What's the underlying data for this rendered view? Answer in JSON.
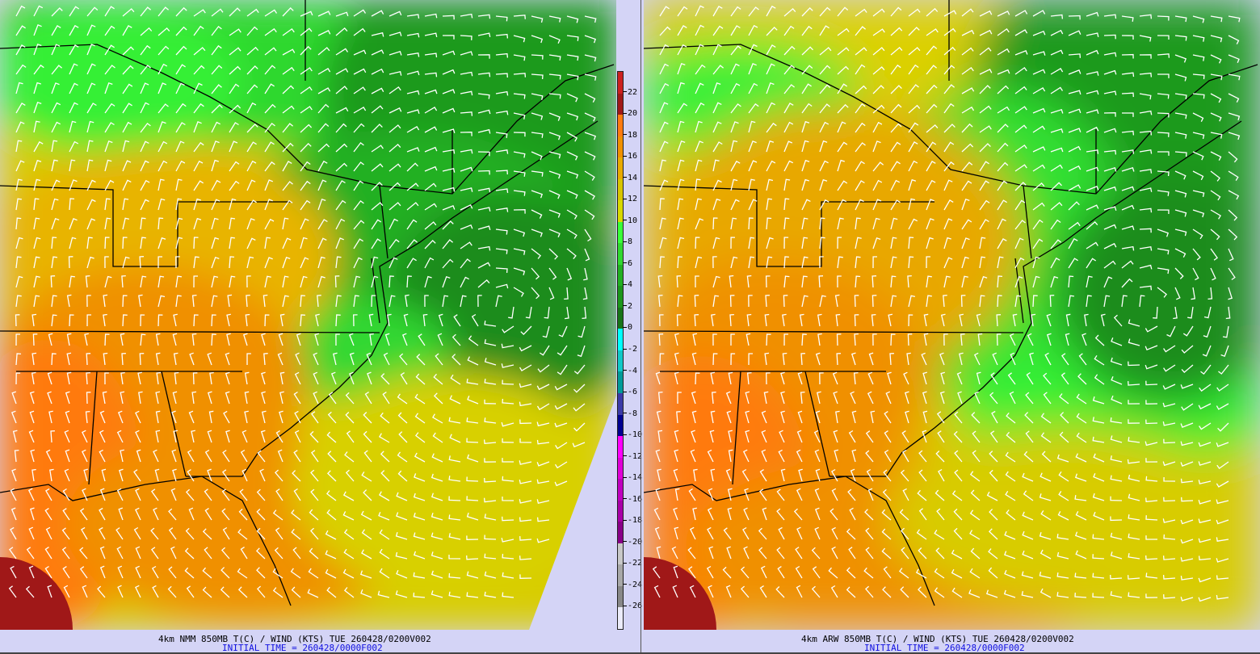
{
  "panels": [
    {
      "model": "NMM",
      "caption": "4km NMM 850MB T(C) / WIND (KTS) TUE 260428/0200V002",
      "initial_time": "INITIAL TIME = 260428/0000F002"
    },
    {
      "model": "ARW",
      "caption": "4km ARW 850MB T(C) / WIND (KTS) TUE 260428/0200V002",
      "initial_time": "INITIAL TIME = 260428/0000F002"
    }
  ],
  "colorbar": {
    "variable": "850MB T(C)",
    "labels": [
      "22",
      "20",
      "18",
      "16",
      "14",
      "12",
      "10",
      "8",
      "6",
      "4",
      "2",
      "0",
      "-2",
      "-4",
      "-6",
      "-8",
      "-10",
      "-12",
      "-14",
      "-16",
      "-18",
      "-20",
      "-22",
      "-24",
      "-26"
    ],
    "colors": [
      "#cc2020",
      "#a01818",
      "#ff7a10",
      "#f09000",
      "#e8aa00",
      "#d8c400",
      "#d8d800",
      "#38ff38",
      "#30d830",
      "#22b022",
      "#1c961c",
      "#187418",
      "#00ffff",
      "#10c8c8",
      "#009a9a",
      "#3a3aa8",
      "#000090",
      "#ff00ff",
      "#e000d8",
      "#c000c0",
      "#a800a8",
      "#880088",
      "#c8c8c8",
      "#a8a8a8",
      "#888888",
      "#ececfa"
    ]
  },
  "colors": {
    "background": "#d4d4f6",
    "coastline": "#000000",
    "wind_barbs": "#ffffff"
  }
}
